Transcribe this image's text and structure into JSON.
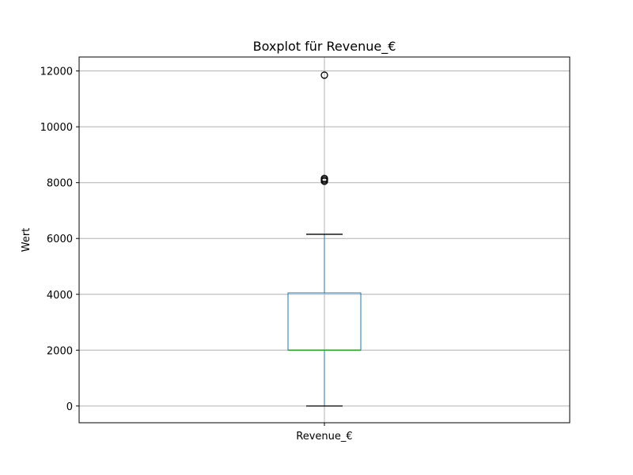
{
  "chart_data": {
    "type": "box",
    "title": "Boxplot für Revenue_€",
    "xlabel": "",
    "ylabel": "Wert",
    "categories": [
      "Revenue_€"
    ],
    "ylim": [
      -600,
      12500
    ],
    "yticks": [
      0,
      2000,
      4000,
      6000,
      8000,
      10000,
      12000
    ],
    "ytick_labels": [
      "0",
      "2000",
      "4000",
      "6000",
      "8000",
      "10000",
      "12000"
    ],
    "grid": true,
    "box": {
      "whisker_low": 0,
      "q1": 2000,
      "median": 2000,
      "q3": 4050,
      "whisker_high": 6150,
      "outliers": [
        8050,
        8100,
        8150,
        11850
      ]
    },
    "colors": {
      "box": "#1f77b4",
      "median": "#2ca02c",
      "whisker_cap": "#000000",
      "grid": "#b0b0b0",
      "outlier_edge": "#000000"
    }
  }
}
